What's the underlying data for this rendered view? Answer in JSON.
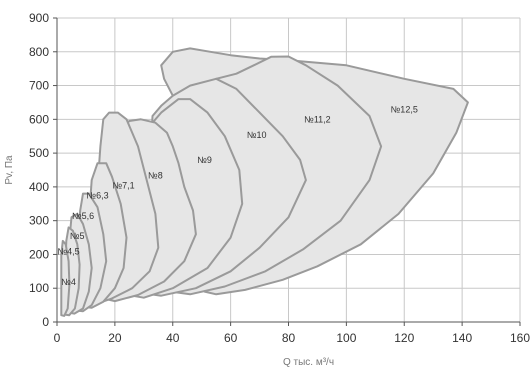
{
  "colors": {
    "fill": "#e6e6e6",
    "stroke": "#9a9a9a",
    "grid": "#c8c8c8",
    "axis": "#555555"
  },
  "chart_data": {
    "type": "area",
    "xlabel": "Q тыс. м³/ч",
    "ylabel": "Pv, Па",
    "xlim": [
      0,
      160
    ],
    "ylim": [
      0,
      900
    ],
    "xticks": [
      0,
      20,
      40,
      60,
      80,
      100,
      120,
      140,
      160
    ],
    "yticks": [
      0,
      100,
      200,
      300,
      400,
      500,
      600,
      700,
      800,
      900
    ],
    "grid": true,
    "series": [
      {
        "name": "№12,5",
        "label_at": [
          120,
          620
        ],
        "points": [
          [
            51,
            90
          ],
          [
            55,
            82
          ],
          [
            65,
            95
          ],
          [
            78,
            125
          ],
          [
            90,
            165
          ],
          [
            105,
            230
          ],
          [
            118,
            320
          ],
          [
            130,
            440
          ],
          [
            138,
            560
          ],
          [
            142,
            650
          ],
          [
            137,
            690
          ],
          [
            120,
            720
          ],
          [
            100,
            760
          ],
          [
            80,
            775
          ],
          [
            70,
            780
          ],
          [
            60,
            790
          ],
          [
            53,
            800
          ],
          [
            46,
            810
          ],
          [
            40,
            800
          ],
          [
            36,
            760
          ],
          [
            37,
            720
          ],
          [
            40,
            670
          ],
          [
            44,
            630
          ],
          [
            47,
            580
          ],
          [
            50,
            450
          ],
          [
            51,
            300
          ],
          [
            51,
            90
          ]
        ]
      },
      {
        "name": "№11,2",
        "label_at": [
          90,
          590
        ],
        "points": [
          [
            41,
            88
          ],
          [
            46,
            82
          ],
          [
            58,
            105
          ],
          [
            72,
            150
          ],
          [
            85,
            215
          ],
          [
            98,
            300
          ],
          [
            108,
            420
          ],
          [
            112,
            520
          ],
          [
            108,
            610
          ],
          [
            97,
            700
          ],
          [
            86,
            760
          ],
          [
            80,
            786
          ],
          [
            74,
            785
          ],
          [
            68,
            760
          ],
          [
            62,
            735
          ],
          [
            55,
            720
          ],
          [
            47,
            680
          ],
          [
            42,
            655
          ],
          [
            38,
            620
          ],
          [
            36,
            570
          ],
          [
            39,
            430
          ],
          [
            41,
            300
          ],
          [
            41,
            88
          ]
        ]
      },
      {
        "name": "№10",
        "label_at": [
          69,
          545
        ],
        "points": [
          [
            31,
            84
          ],
          [
            36,
            78
          ],
          [
            48,
            100
          ],
          [
            60,
            150
          ],
          [
            70,
            220
          ],
          [
            80,
            310
          ],
          [
            86,
            420
          ],
          [
            84,
            480
          ],
          [
            78,
            550
          ],
          [
            70,
            620
          ],
          [
            62,
            690
          ],
          [
            55,
            720
          ],
          [
            46,
            700
          ],
          [
            40,
            670
          ],
          [
            36,
            640
          ],
          [
            33,
            610
          ],
          [
            32,
            430
          ],
          [
            32,
            250
          ],
          [
            31,
            84
          ]
        ]
      },
      {
        "name": "№9",
        "label_at": [
          51,
          470
        ],
        "points": [
          [
            26,
            78
          ],
          [
            30,
            72
          ],
          [
            40,
            100
          ],
          [
            52,
            160
          ],
          [
            60,
            250
          ],
          [
            64,
            350
          ],
          [
            63,
            450
          ],
          [
            58,
            550
          ],
          [
            52,
            620
          ],
          [
            46,
            660
          ],
          [
            42,
            660
          ],
          [
            36,
            620
          ],
          [
            32,
            580
          ],
          [
            29,
            540
          ],
          [
            27,
            450
          ],
          [
            27,
            300
          ],
          [
            26,
            78
          ]
        ]
      },
      {
        "name": "№8",
        "label_at": [
          34,
          425
        ],
        "points": [
          [
            16,
            70
          ],
          [
            20,
            62
          ],
          [
            28,
            80
          ],
          [
            37,
            120
          ],
          [
            44,
            180
          ],
          [
            48,
            260
          ],
          [
            47,
            330
          ],
          [
            44,
            400
          ],
          [
            42,
            470
          ],
          [
            40,
            520
          ],
          [
            38,
            560
          ],
          [
            34,
            590
          ],
          [
            29,
            600
          ],
          [
            25,
            595
          ],
          [
            22,
            570
          ],
          [
            21,
            480
          ],
          [
            20,
            300
          ],
          [
            16,
            70
          ]
        ]
      },
      {
        "name": "№7,1",
        "label_at": [
          23,
          395
        ],
        "points": [
          [
            11,
            60
          ],
          [
            14,
            55
          ],
          [
            19,
            70
          ],
          [
            26,
            100
          ],
          [
            32,
            150
          ],
          [
            35,
            220
          ],
          [
            34,
            320
          ],
          [
            31,
            420
          ],
          [
            28,
            520
          ],
          [
            24,
            600
          ],
          [
            21,
            620
          ],
          [
            18,
            620
          ],
          [
            16,
            600
          ],
          [
            15,
            520
          ],
          [
            14,
            400
          ],
          [
            12,
            250
          ],
          [
            11,
            60
          ]
        ]
      },
      {
        "name": "№6,3",
        "label_at": [
          14,
          365
        ],
        "points": [
          [
            9,
            45
          ],
          [
            12,
            42
          ],
          [
            16,
            60
          ],
          [
            20,
            100
          ],
          [
            23,
            160
          ],
          [
            24,
            250
          ],
          [
            22,
            350
          ],
          [
            19,
            430
          ],
          [
            17,
            470
          ],
          [
            14,
            470
          ],
          [
            12,
            420
          ],
          [
            11,
            300
          ],
          [
            10,
            150
          ],
          [
            9,
            45
          ]
        ]
      },
      {
        "name": "№5,6",
        "label_at": [
          9,
          305
        ],
        "points": [
          [
            6,
            35
          ],
          [
            9,
            32
          ],
          [
            12,
            50
          ],
          [
            15,
            100
          ],
          [
            17,
            180
          ],
          [
            16,
            260
          ],
          [
            14,
            340
          ],
          [
            11,
            380
          ],
          [
            9,
            380
          ],
          [
            8,
            330
          ],
          [
            7,
            220
          ],
          [
            6,
            35
          ]
        ]
      },
      {
        "name": "№5",
        "label_at": [
          7,
          245
        ],
        "points": [
          [
            4,
            28
          ],
          [
            6,
            25
          ],
          [
            9,
            40
          ],
          [
            11,
            90
          ],
          [
            12,
            160
          ],
          [
            11,
            230
          ],
          [
            9,
            290
          ],
          [
            7,
            320
          ],
          [
            5,
            310
          ],
          [
            4,
            220
          ],
          [
            4,
            28
          ]
        ]
      },
      {
        "name": "№4,5",
        "label_at": [
          4,
          200
        ],
        "points": [
          [
            2.8,
            22
          ],
          [
            4.2,
            20
          ],
          [
            6.2,
            40
          ],
          [
            7.5,
            100
          ],
          [
            7.8,
            170
          ],
          [
            7,
            230
          ],
          [
            5.5,
            270
          ],
          [
            4,
            280
          ],
          [
            3.2,
            240
          ],
          [
            2.8,
            150
          ],
          [
            2.8,
            22
          ]
        ]
      },
      {
        "name": "№4",
        "label_at": [
          4,
          110
        ],
        "points": [
          [
            1.5,
            20
          ],
          [
            2.5,
            18
          ],
          [
            3.7,
            40
          ],
          [
            4.3,
            110
          ],
          [
            4,
            180
          ],
          [
            3,
            230
          ],
          [
            2,
            240
          ],
          [
            1.5,
            200
          ],
          [
            1.5,
            20
          ]
        ]
      }
    ]
  }
}
